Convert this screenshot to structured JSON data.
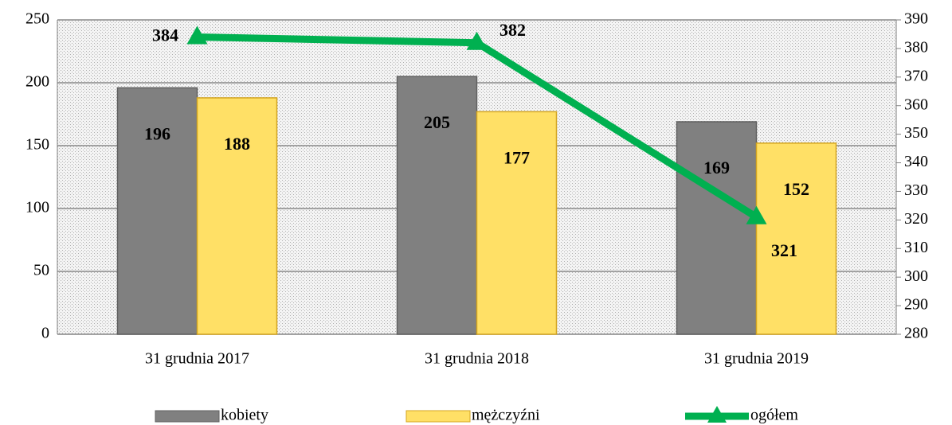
{
  "chart_data": {
    "type": "bar_line",
    "categories": [
      "31 grudnia 2017",
      "31 grudnia 2018",
      "31 grudnia 2019"
    ],
    "series": [
      {
        "name": "kobiety",
        "color": "#808080",
        "type": "bar",
        "values": [
          196,
          205,
          169
        ]
      },
      {
        "name": "mężczyźni",
        "color": "#ffe066",
        "type": "bar",
        "values": [
          188,
          177,
          152
        ]
      },
      {
        "name": "ogółem",
        "color": "#00b050",
        "type": "line",
        "axis": "y2",
        "values": [
          384,
          382,
          321
        ]
      }
    ],
    "ylim": [
      0,
      250
    ],
    "yticks": [
      0,
      50,
      100,
      150,
      200,
      250
    ],
    "y2lim": [
      280,
      390
    ],
    "y2ticks": [
      280,
      290,
      300,
      310,
      320,
      330,
      340,
      350,
      360,
      370,
      380,
      390
    ],
    "grid": true,
    "legend": "bottom"
  }
}
